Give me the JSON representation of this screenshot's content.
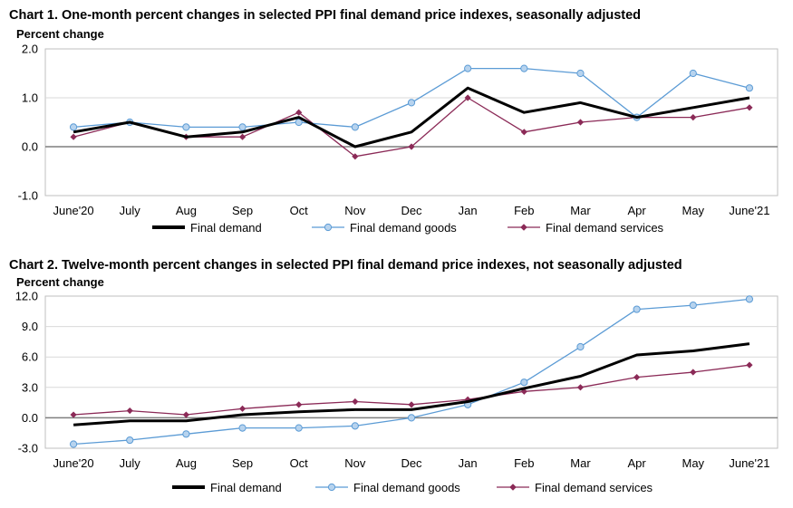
{
  "colors": {
    "final_demand": "#000000",
    "final_demand_goods": "#5b9bd5",
    "goods_marker_fill": "#b7d3ee",
    "final_demand_services": "#8b2a57",
    "grid": "#d9d9d9",
    "zero_line": "#7f7f7f"
  },
  "chart_data": [
    {
      "type": "line",
      "title": "Chart 1. One-month percent changes in selected PPI final demand price indexes, seasonally adjusted",
      "ylabel": "Percent change",
      "xlabel": "",
      "categories": [
        "June'20",
        "July",
        "Aug",
        "Sep",
        "Oct",
        "Nov",
        "Dec",
        "Jan",
        "Feb",
        "Mar",
        "Apr",
        "May",
        "June'21"
      ],
      "ylim": [
        -1.0,
        2.0
      ],
      "yticks": [
        -1.0,
        0.0,
        1.0,
        2.0
      ],
      "ytick_labels": [
        "-1.0",
        "0.0",
        "1.0",
        "2.0"
      ],
      "grid": true,
      "legend": "bottom",
      "series": [
        {
          "name": "Final demand",
          "values": [
            0.3,
            0.5,
            0.2,
            0.3,
            0.6,
            0.0,
            0.3,
            1.2,
            0.7,
            0.9,
            0.6,
            0.8,
            1.0
          ]
        },
        {
          "name": "Final demand goods",
          "values": [
            0.4,
            0.5,
            0.4,
            0.4,
            0.5,
            0.4,
            0.9,
            1.6,
            1.6,
            1.5,
            0.6,
            1.5,
            1.2
          ]
        },
        {
          "name": "Final demand services",
          "values": [
            0.2,
            0.5,
            0.2,
            0.2,
            0.7,
            -0.2,
            0.0,
            1.0,
            0.3,
            0.5,
            0.6,
            0.6,
            0.8
          ]
        }
      ]
    },
    {
      "type": "line",
      "title": "Chart 2. Twelve-month percent changes in selected PPI final demand price indexes, not seasonally adjusted",
      "ylabel": "Percent change",
      "xlabel": "",
      "categories": [
        "June'20",
        "July",
        "Aug",
        "Sep",
        "Oct",
        "Nov",
        "Dec",
        "Jan",
        "Feb",
        "Mar",
        "Apr",
        "May",
        "June'21"
      ],
      "ylim": [
        -3.0,
        12.0
      ],
      "yticks": [
        -3.0,
        0.0,
        3.0,
        6.0,
        9.0,
        12.0
      ],
      "ytick_labels": [
        "-3.0",
        "0.0",
        "3.0",
        "6.0",
        "9.0",
        "12.0"
      ],
      "grid": true,
      "legend": "bottom",
      "series": [
        {
          "name": "Final demand",
          "values": [
            -0.7,
            -0.3,
            -0.3,
            0.3,
            0.6,
            0.8,
            0.8,
            1.6,
            2.9,
            4.1,
            6.2,
            6.6,
            7.3
          ]
        },
        {
          "name": "Final demand goods",
          "values": [
            -2.6,
            -2.2,
            -1.6,
            -1.0,
            -1.0,
            -0.8,
            0.0,
            1.3,
            3.5,
            7.0,
            10.7,
            11.1,
            11.7
          ]
        },
        {
          "name": "Final demand services",
          "values": [
            0.3,
            0.7,
            0.3,
            0.9,
            1.3,
            1.6,
            1.3,
            1.8,
            2.6,
            3.0,
            4.0,
            4.5,
            5.2
          ]
        }
      ]
    }
  ]
}
